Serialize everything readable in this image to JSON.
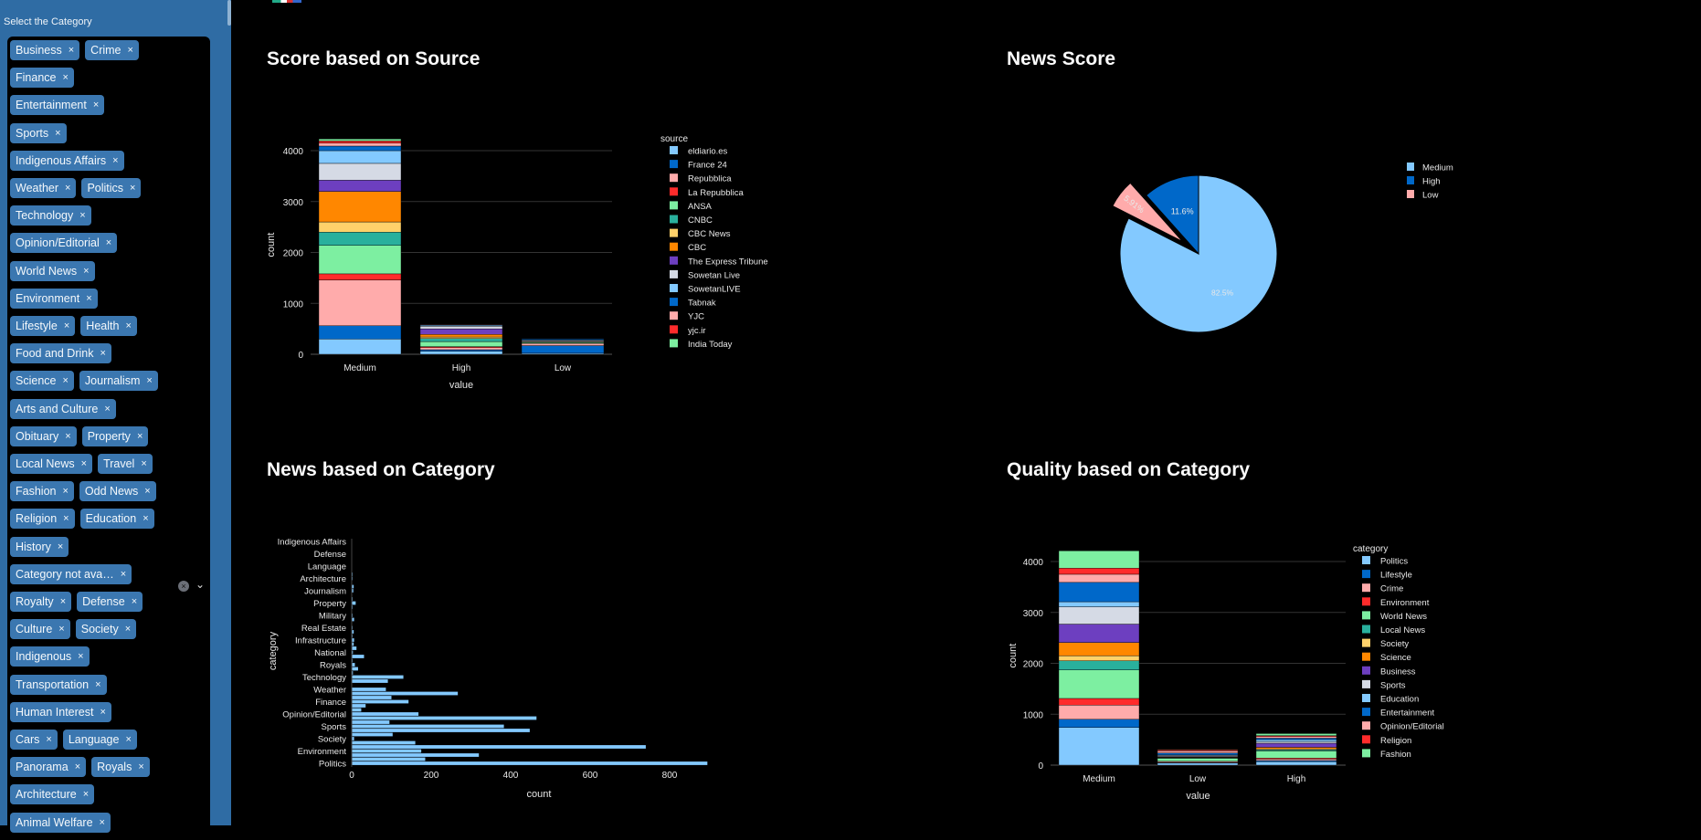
{
  "sidebar": {
    "label": "Select the Category",
    "tag_rows": [
      [
        "Business",
        "Crime"
      ],
      [
        "Finance"
      ],
      [
        "Entertainment"
      ],
      [
        "Sports"
      ],
      [
        "Indigenous Affairs"
      ],
      [
        "Weather",
        "Politics"
      ],
      [
        "Technology"
      ],
      [
        "Opinion/Editorial"
      ],
      [
        "World News"
      ],
      [
        "Environment"
      ],
      [
        "Lifestyle",
        "Health"
      ],
      [
        "Food and Drink"
      ],
      [
        "Science",
        "Journalism"
      ],
      [
        "Arts and Culture"
      ],
      [
        "Obituary",
        "Property"
      ],
      [
        "Local News",
        "Travel"
      ],
      [
        "Fashion",
        "Odd News"
      ],
      [
        "Religion",
        "Education"
      ],
      [
        "History"
      ],
      [
        "Category not ava…"
      ],
      [
        "Royalty",
        "Defense"
      ],
      [
        "Culture",
        "Society"
      ],
      [
        "Indigenous"
      ],
      [
        "Transportation"
      ],
      [
        "Human Interest"
      ],
      [
        "Cars",
        "Language"
      ],
      [
        "Panorama",
        "Royals"
      ],
      [
        "Architecture"
      ],
      [
        "Animal Welfare"
      ]
    ],
    "remove_glyph": "×",
    "clear_glyph": "×",
    "chevron_glyph": "⌄"
  },
  "colors": {
    "palette": [
      "#83c9ff",
      "#0068c9",
      "#ffabab",
      "#ff2b2b",
      "#7defa1",
      "#29b09d",
      "#ffd16a",
      "#ff8700",
      "#6d3fc0",
      "#d5dae5"
    ],
    "sidebar": "#2f6ca4",
    "tag": "#3b77b0"
  },
  "chart_data": [
    {
      "id": "source",
      "type": "bar",
      "title": "Score based on Source",
      "xlabel": "value",
      "ylabel": "count",
      "categories": [
        "Medium",
        "High",
        "Low"
      ],
      "ylim": [
        0,
        4300
      ],
      "yticks": [
        0,
        1000,
        2000,
        3000,
        4000
      ],
      "legend_title": "source",
      "legend": "right",
      "series": [
        {
          "name": "eldiario.es",
          "values": [
            300,
            60,
            20
          ]
        },
        {
          "name": "France 24",
          "values": [
            260,
            30,
            150
          ]
        },
        {
          "name": "Repubblica",
          "values": [
            900,
            40,
            40
          ]
        },
        {
          "name": "La Repubblica",
          "values": [
            120,
            20,
            0
          ]
        },
        {
          "name": "ANSA",
          "values": [
            560,
            100,
            20
          ]
        },
        {
          "name": "CNBC",
          "values": [
            260,
            60,
            10
          ]
        },
        {
          "name": "CBC News",
          "values": [
            200,
            30,
            10
          ]
        },
        {
          "name": "CBC",
          "values": [
            600,
            50,
            0
          ]
        },
        {
          "name": "The Express Tribune",
          "values": [
            220,
            110,
            0
          ]
        },
        {
          "name": "Sowetan Live",
          "values": [
            330,
            50,
            20
          ]
        },
        {
          "name": "SowetanLIVE",
          "values": [
            250,
            20,
            10
          ]
        },
        {
          "name": "Tabnak",
          "values": [
            90,
            10,
            20
          ]
        },
        {
          "name": "YJC",
          "values": [
            60,
            10,
            5
          ]
        },
        {
          "name": "yjc.ir",
          "values": [
            40,
            5,
            5
          ]
        },
        {
          "name": "India Today",
          "values": [
            40,
            5,
            0
          ]
        }
      ]
    },
    {
      "id": "pie",
      "type": "pie",
      "title": "News Score",
      "slices": [
        {
          "label": "Medium",
          "value": 82.5,
          "text": "82.5%"
        },
        {
          "label": "Low",
          "value": 5.91,
          "text": "5.91%",
          "pulled": true
        },
        {
          "label": "High",
          "value": 11.6,
          "text": "11.6%"
        }
      ],
      "legend_order": [
        "Medium",
        "High",
        "Low"
      ],
      "legend": "top-right"
    },
    {
      "id": "hbar",
      "type": "bar",
      "orientation": "horizontal",
      "title": "News based on Category",
      "xlabel": "count",
      "ylabel": "category",
      "xlim": [
        0,
        900
      ],
      "xticks": [
        0,
        200,
        400,
        600,
        800
      ],
      "values_bottom_to_top": [
        895,
        185,
        320,
        175,
        740,
        160,
        6,
        103,
        448,
        383,
        95,
        465,
        168,
        24,
        35,
        143,
        100,
        267,
        86,
        0,
        91,
        130,
        3,
        16,
        8,
        2,
        31,
        3,
        12,
        5,
        6,
        2,
        5,
        2,
        1,
        6,
        2,
        1,
        2,
        10,
        2,
        1,
        4,
        5,
        1,
        2,
        2,
        1,
        1,
        1,
        1,
        1,
        1,
        1,
        1
      ],
      "tick_labels_bottom_to_top": [
        "Politics",
        "Environment",
        "Society",
        "Sports",
        "Opinion/Editorial",
        "Finance",
        "Weather",
        "Technology",
        "Royals",
        "National",
        "Infrastructure",
        "Real Estate",
        "Military",
        "Property",
        "Journalism",
        "Architecture",
        "Language",
        "Defense",
        "Indigenous Affairs"
      ]
    },
    {
      "id": "quality",
      "type": "bar",
      "title": "Quality based on Category",
      "xlabel": "value",
      "ylabel": "count",
      "categories": [
        "Medium",
        "Low",
        "High"
      ],
      "ylim": [
        0,
        4300
      ],
      "yticks": [
        0,
        1000,
        2000,
        3000,
        4000
      ],
      "legend_title": "category",
      "legend": "right",
      "series": [
        {
          "name": "Politics",
          "values": [
            740,
            40,
            70
          ]
        },
        {
          "name": "Lifestyle",
          "values": [
            160,
            10,
            20
          ]
        },
        {
          "name": "Crime",
          "values": [
            280,
            20,
            30
          ]
        },
        {
          "name": "Environment",
          "values": [
            130,
            5,
            20
          ]
        },
        {
          "name": "World News",
          "values": [
            560,
            60,
            140
          ]
        },
        {
          "name": "Local News",
          "values": [
            180,
            10,
            20
          ]
        },
        {
          "name": "Society",
          "values": [
            100,
            5,
            20
          ]
        },
        {
          "name": "Science",
          "values": [
            260,
            10,
            30
          ]
        },
        {
          "name": "Business",
          "values": [
            360,
            10,
            80
          ]
        },
        {
          "name": "Sports",
          "values": [
            340,
            20,
            30
          ]
        },
        {
          "name": "Education",
          "values": [
            100,
            10,
            40
          ]
        },
        {
          "name": "Entertainment",
          "values": [
            380,
            40,
            30
          ]
        },
        {
          "name": "Opinion/Editorial",
          "values": [
            160,
            40,
            30
          ]
        },
        {
          "name": "Religion",
          "values": [
            120,
            20,
            20
          ]
        },
        {
          "name": "Fashion",
          "values": [
            340,
            10,
            40
          ]
        }
      ]
    }
  ]
}
